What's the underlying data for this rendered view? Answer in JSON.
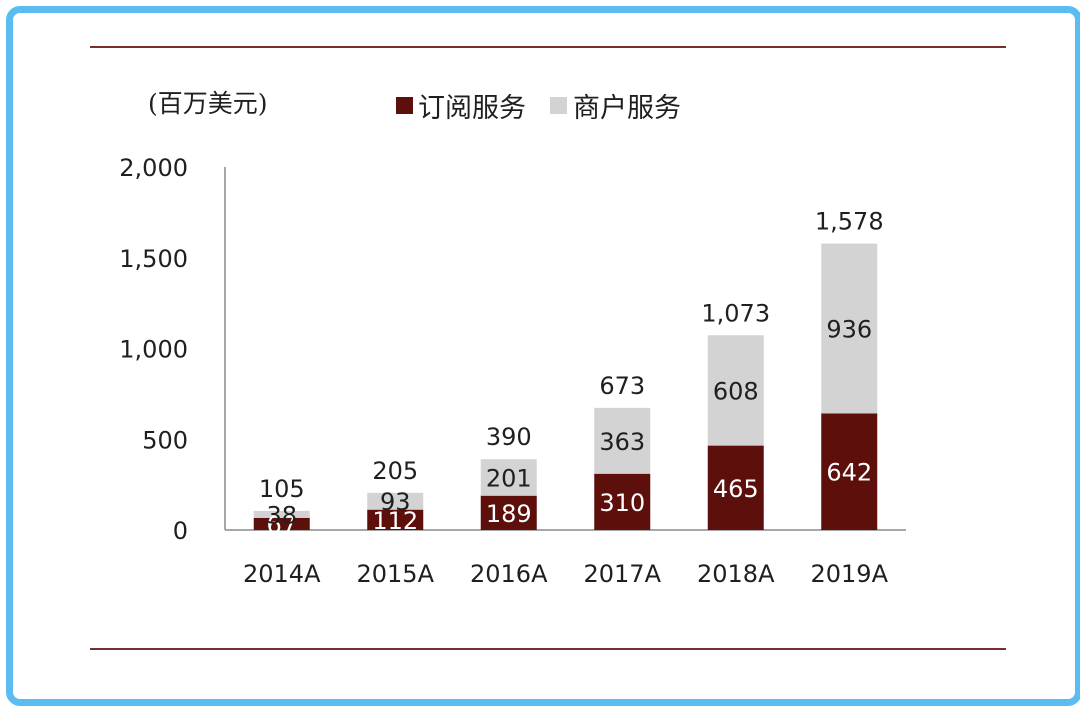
{
  "chart_data": {
    "type": "bar",
    "stacked": true,
    "unit_label": "(百万美元)",
    "categories": [
      "2014A",
      "2015A",
      "2016A",
      "2017A",
      "2018A",
      "2019A"
    ],
    "series": [
      {
        "name": "订阅服务",
        "color": "#5c0f0b",
        "values": [
          67,
          112,
          189,
          310,
          465,
          642
        ]
      },
      {
        "name": "商户服务",
        "color": "#d3d3d3",
        "values": [
          38,
          93,
          201,
          363,
          608,
          936
        ]
      }
    ],
    "totals": [
      "105",
      "205",
      "390",
      "673",
      "1,073",
      "1,578"
    ],
    "value_labels": [
      [
        "67",
        "112",
        "189",
        "310",
        "465",
        "642"
      ],
      [
        "38",
        "93",
        "201",
        "363",
        "608",
        "936"
      ]
    ],
    "yticks": [
      "0",
      "500",
      "1,000",
      "1,500",
      "2,000"
    ],
    "ytick_values": [
      0,
      500,
      1000,
      1500,
      2000
    ],
    "ylim": [
      0,
      2000
    ],
    "legend_position": "top",
    "rule_color": "#7a2f2c"
  }
}
